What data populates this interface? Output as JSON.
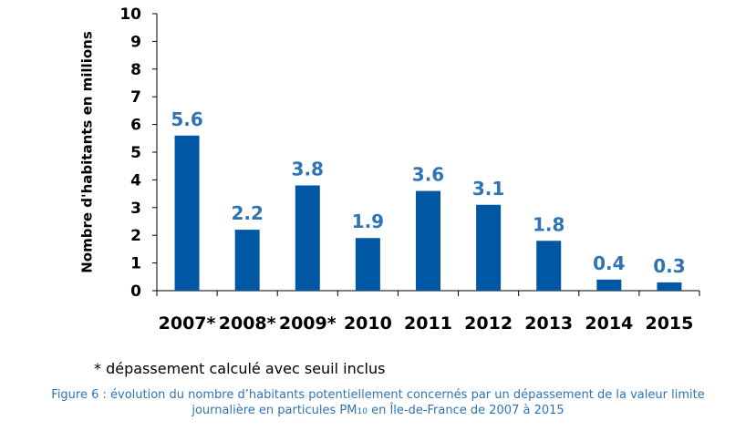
{
  "colors": {
    "bar": "#0057a3",
    "data_label": "#2e74b5",
    "axis": "#000000",
    "caption": "#2e74b5"
  },
  "chart_data": {
    "type": "bar",
    "categories": [
      "2007*",
      "2008*",
      "2009*",
      "2010",
      "2011",
      "2012",
      "2013",
      "2014",
      "2015"
    ],
    "values": [
      5.6,
      2.2,
      3.8,
      1.9,
      3.6,
      3.1,
      1.8,
      0.4,
      0.3
    ],
    "data_labels": [
      "5.6",
      "2.2",
      "3.8",
      "1.9",
      "3.6",
      "3.1",
      "1.8",
      "0.4",
      "0.3"
    ],
    "ylabel": "Nombre d'habitants en millions",
    "xlabel": "",
    "ylim": [
      0,
      10
    ],
    "yticks": [
      "0",
      "1",
      "2",
      "3",
      "4",
      "5",
      "6",
      "7",
      "8",
      "9",
      "10"
    ],
    "grid": false,
    "legend": "none"
  },
  "footnote": "* dépassement calculé avec seuil inclus",
  "caption": {
    "line1": "Figure 6 : évolution du nombre d’habitants potentiellement concernés par un dépassement de la valeur limite",
    "line2_before": "journalière en particules PM",
    "line2_sub": "10",
    "line2_after": " en Île-de-France de 2007 à 2015"
  }
}
